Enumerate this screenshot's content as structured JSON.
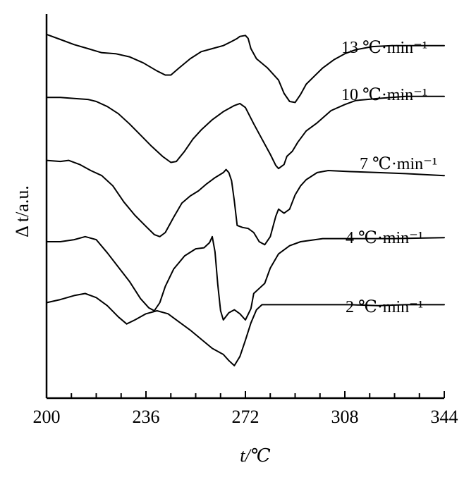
{
  "chart_data": {
    "type": "line",
    "xlabel": "t/℃",
    "ylabel": "Δ t/a.u.",
    "xlim": [
      200,
      344
    ],
    "x_ticks": [
      "200",
      "236",
      "272",
      "308",
      "344"
    ],
    "grid": false,
    "legend": "none",
    "y_units": "arbitrary",
    "series": [
      {
        "name": "13 ℃·min⁻¹",
        "points": [
          [
            200,
            8.0
          ],
          [
            205,
            7.75
          ],
          [
            210,
            7.5
          ],
          [
            215,
            7.3
          ],
          [
            220,
            7.1
          ],
          [
            225,
            7.05
          ],
          [
            230,
            6.9
          ],
          [
            235,
            6.6
          ],
          [
            240,
            6.2
          ],
          [
            243,
            6.0
          ],
          [
            245,
            6.0
          ],
          [
            248,
            6.35
          ],
          [
            252,
            6.8
          ],
          [
            256,
            7.15
          ],
          [
            260,
            7.3
          ],
          [
            264,
            7.45
          ],
          [
            267,
            7.65
          ],
          [
            269,
            7.8
          ],
          [
            270,
            7.9
          ],
          [
            272,
            7.95
          ],
          [
            273,
            7.8
          ],
          [
            274,
            7.3
          ],
          [
            276,
            6.8
          ],
          [
            280,
            6.35
          ],
          [
            284,
            5.75
          ],
          [
            286,
            5.1
          ],
          [
            288,
            4.7
          ],
          [
            290,
            4.65
          ],
          [
            292,
            5.05
          ],
          [
            294,
            5.55
          ],
          [
            297,
            5.95
          ],
          [
            300,
            6.35
          ],
          [
            304,
            6.75
          ],
          [
            308,
            7.05
          ],
          [
            312,
            7.25
          ],
          [
            318,
            7.4
          ],
          [
            325,
            7.45
          ],
          [
            335,
            7.45
          ],
          [
            344,
            7.45
          ]
        ]
      },
      {
        "name": "10 ℃·min⁻¹",
        "points": [
          [
            200,
            4.9
          ],
          [
            205,
            4.9
          ],
          [
            210,
            4.85
          ],
          [
            215,
            4.8
          ],
          [
            218,
            4.7
          ],
          [
            222,
            4.45
          ],
          [
            226,
            4.1
          ],
          [
            230,
            3.6
          ],
          [
            234,
            3.05
          ],
          [
            238,
            2.5
          ],
          [
            242,
            2.0
          ],
          [
            245,
            1.7
          ],
          [
            247,
            1.75
          ],
          [
            250,
            2.25
          ],
          [
            253,
            2.85
          ],
          [
            256,
            3.3
          ],
          [
            260,
            3.8
          ],
          [
            264,
            4.2
          ],
          [
            268,
            4.5
          ],
          [
            270,
            4.6
          ],
          [
            272,
            4.4
          ],
          [
            275,
            3.6
          ],
          [
            278,
            2.85
          ],
          [
            281,
            2.1
          ],
          [
            283,
            1.55
          ],
          [
            284,
            1.4
          ],
          [
            286,
            1.6
          ],
          [
            287,
            2.0
          ],
          [
            289,
            2.25
          ],
          [
            291,
            2.7
          ],
          [
            294,
            3.25
          ],
          [
            298,
            3.65
          ],
          [
            303,
            4.25
          ],
          [
            308,
            4.55
          ],
          [
            312,
            4.75
          ],
          [
            320,
            4.85
          ],
          [
            330,
            4.95
          ],
          [
            344,
            4.95
          ]
        ]
      },
      {
        "name": "7 ℃·min⁻¹",
        "points": [
          [
            200,
            1.8
          ],
          [
            205,
            1.75
          ],
          [
            208,
            1.8
          ],
          [
            212,
            1.6
          ],
          [
            216,
            1.3
          ],
          [
            220,
            1.05
          ],
          [
            224,
            0.55
          ],
          [
            228,
            -0.25
          ],
          [
            232,
            -0.9
          ],
          [
            236,
            -1.45
          ],
          [
            239,
            -1.85
          ],
          [
            241,
            -1.95
          ],
          [
            243,
            -1.75
          ],
          [
            246,
            -1.0
          ],
          [
            249,
            -0.3
          ],
          [
            252,
            0.05
          ],
          [
            255,
            0.3
          ],
          [
            258,
            0.65
          ],
          [
            261,
            0.95
          ],
          [
            264,
            1.2
          ],
          [
            265,
            1.35
          ],
          [
            266,
            1.2
          ],
          [
            267,
            0.8
          ],
          [
            268,
            -0.2
          ],
          [
            269,
            -1.4
          ],
          [
            271,
            -1.5
          ],
          [
            273,
            -1.55
          ],
          [
            275,
            -1.75
          ],
          [
            277,
            -2.2
          ],
          [
            279,
            -2.35
          ],
          [
            281,
            -1.95
          ],
          [
            283,
            -0.95
          ],
          [
            284,
            -0.6
          ],
          [
            286,
            -0.8
          ],
          [
            288,
            -0.6
          ],
          [
            290,
            0.1
          ],
          [
            292,
            0.55
          ],
          [
            294,
            0.85
          ],
          [
            298,
            1.2
          ],
          [
            302,
            1.3
          ],
          [
            310,
            1.25
          ],
          [
            320,
            1.2
          ],
          [
            330,
            1.15
          ],
          [
            344,
            1.05
          ]
        ]
      },
      {
        "name": "4 ℃·min⁻¹",
        "points": [
          [
            200,
            -2.2
          ],
          [
            205,
            -2.2
          ],
          [
            210,
            -2.1
          ],
          [
            214,
            -1.95
          ],
          [
            218,
            -2.1
          ],
          [
            222,
            -2.75
          ],
          [
            226,
            -3.45
          ],
          [
            230,
            -4.15
          ],
          [
            234,
            -5.0
          ],
          [
            237,
            -5.45
          ],
          [
            239,
            -5.6
          ],
          [
            241,
            -5.2
          ],
          [
            243,
            -4.4
          ],
          [
            246,
            -3.55
          ],
          [
            250,
            -2.9
          ],
          [
            254,
            -2.55
          ],
          [
            257,
            -2.5
          ],
          [
            259,
            -2.25
          ],
          [
            260,
            -1.95
          ],
          [
            261,
            -2.7
          ],
          [
            262,
            -4.3
          ],
          [
            263,
            -5.6
          ],
          [
            264,
            -6.05
          ],
          [
            266,
            -5.7
          ],
          [
            268,
            -5.55
          ],
          [
            270,
            -5.75
          ],
          [
            272,
            -6.05
          ],
          [
            274,
            -5.5
          ],
          [
            275,
            -4.75
          ],
          [
            277,
            -4.5
          ],
          [
            279,
            -4.25
          ],
          [
            281,
            -3.5
          ],
          [
            284,
            -2.8
          ],
          [
            288,
            -2.4
          ],
          [
            292,
            -2.2
          ],
          [
            300,
            -2.05
          ],
          [
            310,
            -2.05
          ],
          [
            325,
            -2.05
          ],
          [
            344,
            -2.0
          ]
        ]
      },
      {
        "name": "2 ℃·min⁻¹",
        "points": [
          [
            200,
            -5.2
          ],
          [
            205,
            -5.05
          ],
          [
            210,
            -4.85
          ],
          [
            214,
            -4.75
          ],
          [
            218,
            -4.95
          ],
          [
            222,
            -5.35
          ],
          [
            226,
            -5.9
          ],
          [
            229,
            -6.25
          ],
          [
            232,
            -6.05
          ],
          [
            236,
            -5.75
          ],
          [
            240,
            -5.6
          ],
          [
            244,
            -5.75
          ],
          [
            248,
            -6.15
          ],
          [
            252,
            -6.55
          ],
          [
            256,
            -7.0
          ],
          [
            260,
            -7.45
          ],
          [
            264,
            -7.75
          ],
          [
            266,
            -8.05
          ],
          [
            268,
            -8.3
          ],
          [
            270,
            -7.85
          ],
          [
            272,
            -7.05
          ],
          [
            274,
            -6.2
          ],
          [
            276,
            -5.55
          ],
          [
            278,
            -5.3
          ],
          [
            282,
            -5.3
          ],
          [
            290,
            -5.3
          ],
          [
            300,
            -5.3
          ],
          [
            310,
            -5.3
          ],
          [
            320,
            -5.35
          ],
          [
            330,
            -5.3
          ],
          [
            344,
            -5.3
          ]
        ]
      }
    ]
  }
}
